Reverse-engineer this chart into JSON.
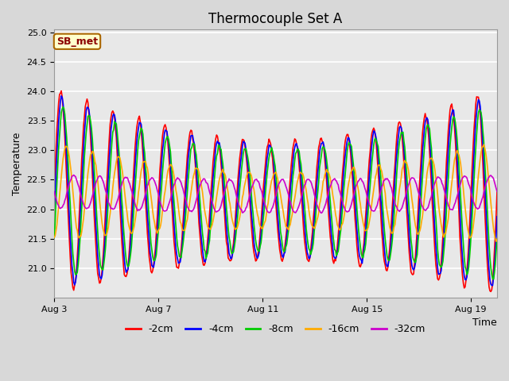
{
  "title": "Thermocouple Set A",
  "xlabel": "Time",
  "ylabel": "Temperature",
  "annotation": "SB_met",
  "xlim_days": [
    0,
    17
  ],
  "ylim": [
    20.5,
    25.05
  ],
  "yticks": [
    21.0,
    21.5,
    22.0,
    22.5,
    23.0,
    23.5,
    24.0,
    24.5,
    25.0
  ],
  "xtick_labels": [
    "Aug 3",
    "Aug 7",
    "Aug 11",
    "Aug 15",
    "Aug 19"
  ],
  "xtick_positions": [
    0,
    4,
    8,
    12,
    16
  ],
  "series_colors": [
    "#ff0000",
    "#0000ff",
    "#00cc00",
    "#ffaa00",
    "#cc00cc"
  ],
  "series_labels": [
    "-2cm",
    "-4cm",
    "-8cm",
    "-16cm",
    "-32cm"
  ],
  "base_mean": 22.3,
  "period_days": 1.0,
  "n_points": 500,
  "background_color": "#d8d8d8",
  "plot_bg_color": "#e8e8e8",
  "grid_color": "#ffffff",
  "title_fontsize": 12,
  "axis_label_fontsize": 9,
  "tick_fontsize": 8,
  "legend_fontsize": 9,
  "annotation_fontsize": 9,
  "line_width": 1.2
}
